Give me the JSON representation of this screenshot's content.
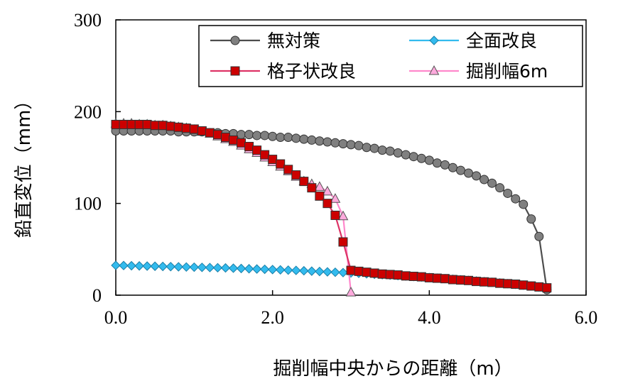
{
  "chart_data": {
    "type": "line",
    "title": "",
    "xlabel": "掘削幅中央からの距離（m）",
    "ylabel": "鉛直変位（mm）",
    "xlim": [
      0,
      6
    ],
    "ylim": [
      0,
      300
    ],
    "xticks": [
      "0.0",
      "2.0",
      "4.0",
      "6.0"
    ],
    "yticks": [
      "0",
      "100",
      "200",
      "300"
    ],
    "grid": false,
    "legend_position": "top-right",
    "series": [
      {
        "name": "無対策",
        "color": "#4d4d4d",
        "marker_fill": "#808080",
        "marker": "circle",
        "x": [
          0.0,
          0.1,
          0.2,
          0.3,
          0.4,
          0.5,
          0.6,
          0.7,
          0.8,
          0.9,
          1.0,
          1.1,
          1.2,
          1.3,
          1.4,
          1.5,
          1.6,
          1.7,
          1.8,
          1.9,
          2.0,
          2.1,
          2.2,
          2.3,
          2.4,
          2.5,
          2.6,
          2.7,
          2.8,
          2.9,
          3.0,
          3.1,
          3.2,
          3.3,
          3.4,
          3.5,
          3.6,
          3.7,
          3.8,
          3.9,
          4.0,
          4.1,
          4.2,
          4.3,
          4.4,
          4.5,
          4.6,
          4.7,
          4.8,
          4.9,
          5.0,
          5.1,
          5.2,
          5.3,
          5.4,
          5.5
        ],
        "y": [
          179,
          179,
          179,
          179,
          179,
          179,
          179,
          179,
          178,
          178,
          178,
          178,
          177,
          177,
          176,
          176,
          175,
          175,
          174,
          174,
          173,
          172,
          172,
          171,
          170,
          169,
          168,
          167,
          166,
          165,
          164,
          163,
          161,
          160,
          158,
          157,
          155,
          153,
          151,
          149,
          147,
          144,
          142,
          139,
          136,
          133,
          130,
          126,
          122,
          117,
          111,
          105,
          99,
          83,
          64,
          6
        ]
      },
      {
        "name": "全面改良",
        "color": "#33bbee",
        "marker_fill": "#33bbee",
        "marker": "diamond",
        "x": [
          0.0,
          0.1,
          0.2,
          0.3,
          0.4,
          0.5,
          0.6,
          0.7,
          0.8,
          0.9,
          1.0,
          1.1,
          1.2,
          1.3,
          1.4,
          1.5,
          1.6,
          1.7,
          1.8,
          1.9,
          2.0,
          2.1,
          2.2,
          2.3,
          2.4,
          2.5,
          2.6,
          2.7,
          2.8,
          2.9,
          3.0,
          3.1,
          3.2,
          3.3,
          3.4,
          3.5,
          3.6,
          3.7,
          3.8,
          3.9,
          4.0,
          4.1,
          4.2,
          4.3,
          4.4,
          4.5,
          4.6,
          4.7,
          4.8,
          4.9,
          5.0,
          5.1,
          5.2,
          5.3,
          5.4,
          5.5
        ],
        "y": [
          32.5,
          32.3,
          32.1,
          31.9,
          31.7,
          31.5,
          31.3,
          31.1,
          30.9,
          30.7,
          30.5,
          30.3,
          30.1,
          29.9,
          29.7,
          29.4,
          29.1,
          28.8,
          28.5,
          28.2,
          27.9,
          27.6,
          27.3,
          27.0,
          26.6,
          26.2,
          25.8,
          25.4,
          25.0,
          24.6,
          24.2,
          23.8,
          23.3,
          22.8,
          22.3,
          21.8,
          21.3,
          20.8,
          20.3,
          19.8,
          19.2,
          18.6,
          18.0,
          17.4,
          16.8,
          16.2,
          15.5,
          14.8,
          14.1,
          13.4,
          12.6,
          11.8,
          10.9,
          10.0,
          9.0,
          8.0
        ]
      },
      {
        "name": "格子状改良",
        "color": "#dd3366",
        "marker_fill": "#cc0000",
        "marker": "square",
        "x": [
          0.0,
          0.1,
          0.2,
          0.3,
          0.4,
          0.5,
          0.6,
          0.7,
          0.8,
          0.9,
          1.0,
          1.1,
          1.2,
          1.3,
          1.4,
          1.5,
          1.6,
          1.7,
          1.8,
          1.9,
          2.0,
          2.1,
          2.2,
          2.3,
          2.4,
          2.5,
          2.6,
          2.7,
          2.8,
          2.9,
          3.0,
          3.1,
          3.2,
          3.3,
          3.4,
          3.5,
          3.6,
          3.7,
          3.8,
          3.9,
          4.0,
          4.1,
          4.2,
          4.3,
          4.4,
          4.5,
          4.6,
          4.7,
          4.8,
          4.9,
          5.0,
          5.1,
          5.2,
          5.3,
          5.4,
          5.5
        ],
        "y": [
          186,
          186,
          186,
          186,
          186,
          185,
          185,
          184,
          183,
          182,
          181,
          179,
          177,
          175,
          172,
          169,
          166,
          162,
          158,
          153,
          148,
          143,
          137,
          131,
          124,
          117,
          108,
          100,
          87,
          58,
          27,
          26,
          25,
          24,
          23,
          22.5,
          22,
          21,
          20.5,
          20,
          19,
          18.5,
          18,
          17,
          16.5,
          16,
          15,
          14.5,
          14,
          13,
          12.5,
          12,
          11,
          10,
          9,
          8
        ]
      },
      {
        "name": "掘削幅6m",
        "color": "#ff88cc",
        "marker_fill": "#ffaadd",
        "marker": "triangle",
        "x": [
          0.0,
          0.1,
          0.2,
          0.3,
          0.4,
          0.5,
          0.6,
          0.7,
          0.8,
          0.9,
          1.0,
          1.1,
          1.2,
          1.3,
          1.4,
          1.5,
          1.6,
          1.7,
          1.8,
          1.9,
          2.0,
          2.1,
          2.2,
          2.3,
          2.4,
          2.5,
          2.6,
          2.7,
          2.8,
          2.9,
          3.0
        ],
        "y": [
          187,
          187,
          187,
          186,
          186,
          185,
          185,
          184,
          183,
          182,
          180,
          178,
          176,
          173,
          170,
          167,
          163,
          159,
          155,
          150,
          145,
          140,
          135,
          129,
          124,
          121,
          118,
          113,
          105,
          86,
          3
        ]
      }
    ]
  }
}
